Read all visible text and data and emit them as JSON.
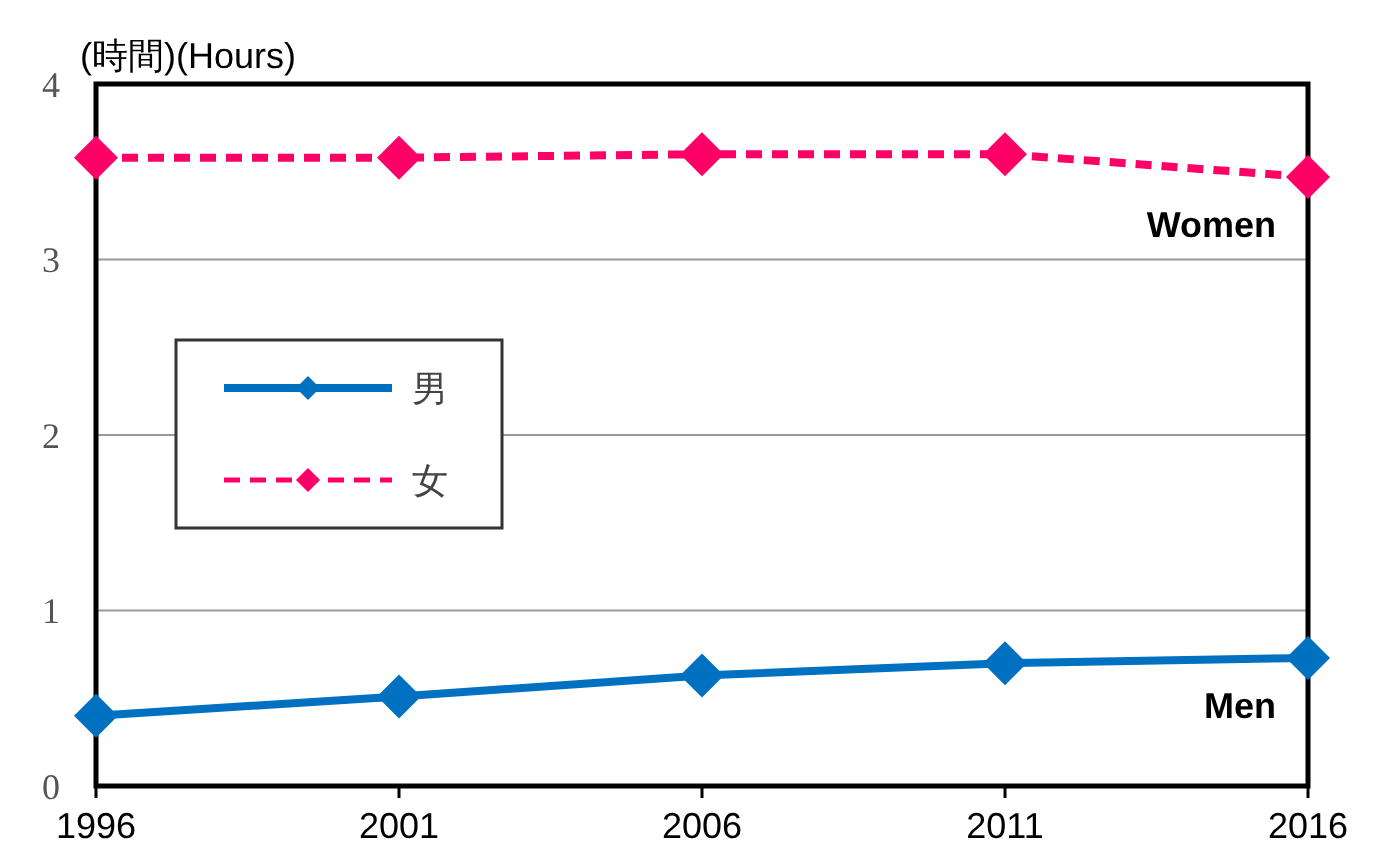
{
  "chart_data": {
    "type": "line",
    "ylabel": "(時間)(Hours)",
    "x": [
      1996,
      2001,
      2006,
      2011,
      2016
    ],
    "xlim": [
      1996,
      2016
    ],
    "xticks": [
      1996,
      2001,
      2006,
      2011,
      2016
    ],
    "ylim": [
      0,
      4
    ],
    "yticks": [
      0,
      1,
      2,
      3,
      4
    ],
    "grid": "y",
    "legend": "left",
    "marker": "diamond",
    "series": [
      {
        "name": "男",
        "color": "#0070c0",
        "values": [
          0.4,
          0.51,
          0.63,
          0.7,
          0.73
        ],
        "line_style": "solid"
      },
      {
        "name": "女",
        "color": "#ff0066",
        "values": [
          3.58,
          3.58,
          3.6,
          3.6,
          3.47
        ],
        "line_style": "dashed"
      }
    ],
    "annotations": [
      {
        "text": "Women",
        "x": 2016,
        "y": 3.47
      },
      {
        "text": "Men",
        "x": 2016,
        "y": 0.73
      }
    ]
  }
}
